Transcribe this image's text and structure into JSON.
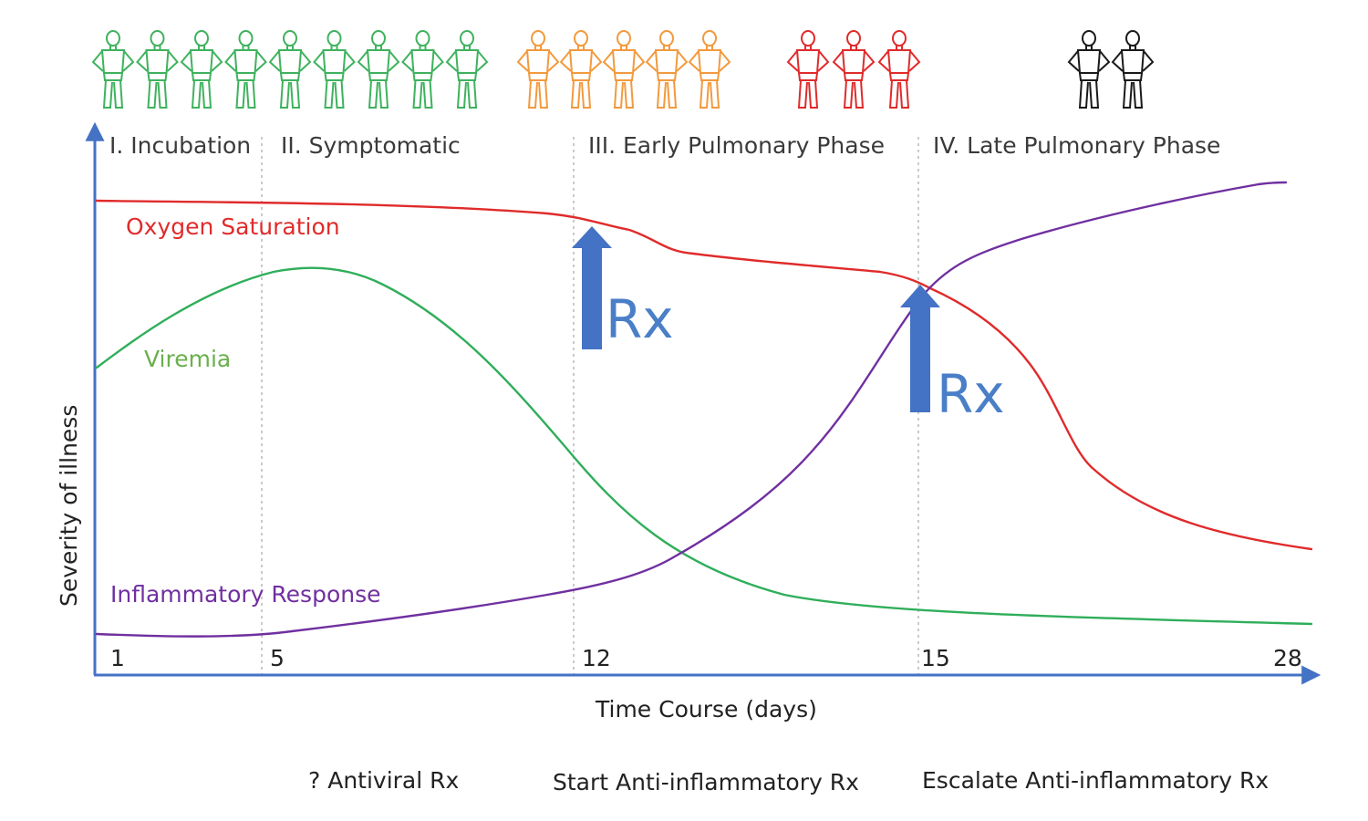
{
  "phases": [
    {
      "label": "I. Incubation"
    },
    {
      "label": "II. Symptomatic"
    },
    {
      "label": "III. Early Pulmonary Phase"
    },
    {
      "label": "IV. Late Pulmonary Phase"
    }
  ],
  "people_groups": [
    {
      "count": 9,
      "color": "#3fb25e"
    },
    {
      "count": 5,
      "color": "#f29a3e"
    },
    {
      "count": 3,
      "color": "#e02b2b"
    },
    {
      "count": 2,
      "color": "#1a1a1a"
    }
  ],
  "axes": {
    "y_title": "Severity of illness",
    "x_title": "Time Course (days)",
    "x_ticks": [
      "1",
      "5",
      "12",
      "15",
      "28"
    ],
    "color": "#4472c4"
  },
  "series": [
    {
      "name": "Oxygen Saturation",
      "color": "#e02b2b"
    },
    {
      "name": "Viremia",
      "color": "#6ab04c"
    },
    {
      "name": "Inflammatory Response",
      "color": "#7030a0"
    }
  ],
  "interventions": [
    {
      "label": "Rx",
      "color": "#4472c4"
    },
    {
      "label": "Rx",
      "color": "#4472c4"
    }
  ],
  "treatments": [
    {
      "label": "? Antiviral Rx"
    },
    {
      "label": "Start Anti-inflammatory Rx"
    },
    {
      "label": "Escalate Anti-inflammatory Rx"
    }
  ]
}
